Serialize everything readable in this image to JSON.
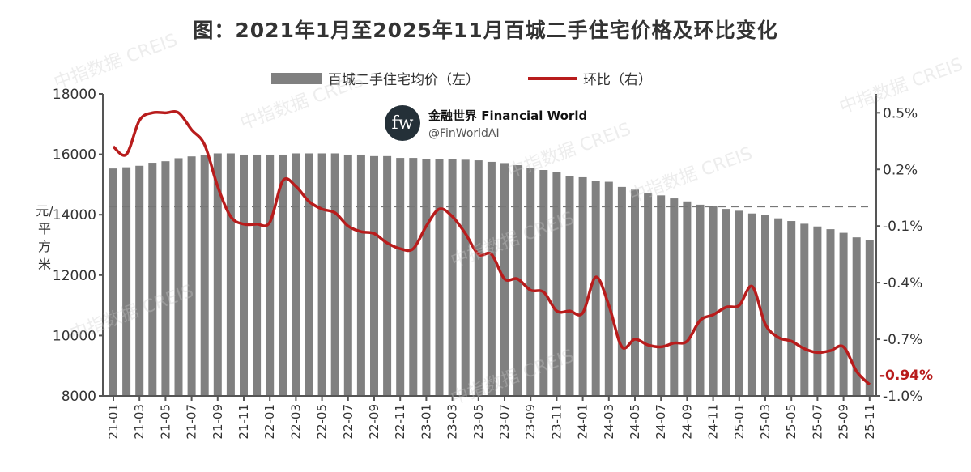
{
  "chart_data": {
    "type": "bar+line",
    "title": "图：2021年1月至2025年11月百城二手住宅价格及环比变化",
    "ylabel": "元/平方米",
    "ylim": [
      8000,
      18000
    ],
    "y2lim": [
      -1.0,
      0.6
    ],
    "yticks": [
      "18000",
      "16000",
      "14000",
      "12000",
      "10000",
      "8000"
    ],
    "y2ticks": [
      "0.5%",
      "0.2%",
      "-0.1%",
      "-0.4%",
      "-0.7%",
      "-1.0%"
    ],
    "grid": false,
    "legend_position": "top",
    "categories": [
      "21-01",
      "21-02",
      "21-03",
      "21-04",
      "21-05",
      "21-06",
      "21-07",
      "21-08",
      "21-09",
      "21-10",
      "21-11",
      "21-12",
      "22-01",
      "22-02",
      "22-03",
      "22-04",
      "22-05",
      "22-06",
      "22-07",
      "22-08",
      "22-09",
      "22-10",
      "22-11",
      "22-12",
      "23-01",
      "23-02",
      "23-03",
      "23-04",
      "23-05",
      "23-06",
      "23-07",
      "23-08",
      "23-09",
      "23-10",
      "23-11",
      "23-12",
      "24-01",
      "24-02",
      "24-03",
      "24-04",
      "24-05",
      "24-06",
      "24-07",
      "24-08",
      "24-09",
      "24-10",
      "24-11",
      "24-12",
      "25-01",
      "25-02",
      "25-03",
      "25-04",
      "25-05",
      "25-06",
      "25-07",
      "25-08",
      "25-09",
      "25-10",
      "25-11"
    ],
    "xtick_labels": [
      "21-01",
      "21-03",
      "21-05",
      "21-07",
      "21-09",
      "21-11",
      "22-01",
      "22-03",
      "22-05",
      "22-07",
      "22-09",
      "22-11",
      "23-01",
      "23-03",
      "23-05",
      "23-07",
      "23-09",
      "23-11",
      "24-01",
      "24-03",
      "24-05",
      "24-07",
      "24-09",
      "24-11",
      "25-01",
      "25-03",
      "25-05",
      "25-07",
      "25-09",
      "25-11"
    ],
    "series": [
      {
        "name": "百城二手住宅均价（左）",
        "type": "bar",
        "axis": "left",
        "color": "#808080",
        "values": [
          15530,
          15570,
          15620,
          15720,
          15770,
          15870,
          15930,
          15970,
          16030,
          16030,
          15990,
          15990,
          15990,
          15990,
          16030,
          16030,
          16030,
          16030,
          15990,
          15990,
          15940,
          15940,
          15880,
          15880,
          15850,
          15840,
          15830,
          15820,
          15800,
          15750,
          15710,
          15640,
          15560,
          15480,
          15400,
          15290,
          15240,
          15130,
          15090,
          14920,
          14830,
          14730,
          14640,
          14540,
          14440,
          14330,
          14300,
          14190,
          14130,
          14040,
          13990,
          13880,
          13790,
          13700,
          13610,
          13520,
          13400,
          13250,
          13150
        ]
      },
      {
        "name": "环比（右）",
        "type": "line",
        "axis": "right",
        "color": "#b81c1c",
        "values": [
          0.32,
          0.28,
          0.46,
          0.5,
          0.5,
          0.5,
          0.41,
          0.33,
          0.11,
          -0.05,
          -0.09,
          -0.09,
          -0.08,
          0.14,
          0.11,
          0.03,
          -0.01,
          -0.03,
          -0.1,
          -0.13,
          -0.14,
          -0.19,
          -0.22,
          -0.22,
          -0.1,
          -0.01,
          -0.05,
          -0.14,
          -0.25,
          -0.25,
          -0.38,
          -0.38,
          -0.44,
          -0.45,
          -0.55,
          -0.55,
          -0.56,
          -0.37,
          -0.52,
          -0.74,
          -0.7,
          -0.73,
          -0.74,
          -0.72,
          -0.71,
          -0.6,
          -0.57,
          -0.53,
          -0.52,
          -0.42,
          -0.62,
          -0.69,
          -0.71,
          -0.75,
          -0.77,
          -0.76,
          -0.74,
          -0.87,
          -0.94
        ]
      }
    ],
    "reference_line": {
      "axis": "left",
      "value": 14270,
      "style": "dashed"
    },
    "annotation": "-0.94%"
  },
  "watermark": {
    "logo": "fw",
    "name": "金融世界 Financial World",
    "handle": "@FinWorldAI",
    "text": "中指数据 CREIS"
  }
}
